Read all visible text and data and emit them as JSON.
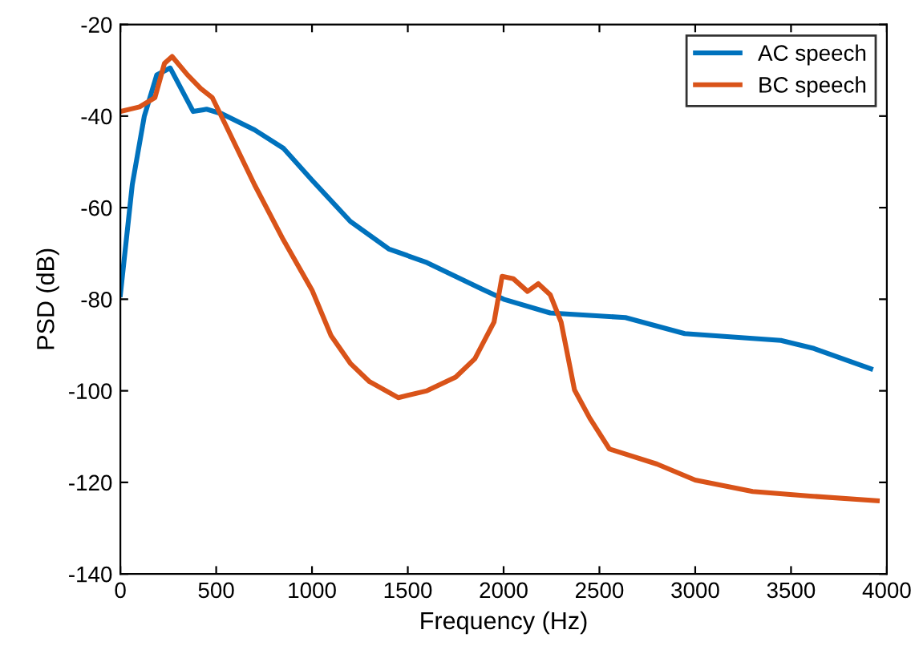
{
  "chart_data": {
    "type": "line",
    "xlabel": "Frequency (Hz)",
    "ylabel": "PSD (dB)",
    "xlim": [
      0,
      4000
    ],
    "ylim": [
      -140,
      -20
    ],
    "xticks": [
      0,
      500,
      1000,
      1500,
      2000,
      2500,
      3000,
      3500,
      4000
    ],
    "yticks": [
      -140,
      -120,
      -100,
      -80,
      -60,
      -40,
      -20
    ],
    "grid": false,
    "legend": "top right",
    "marker": "none",
    "line_style": "solid",
    "series": [
      {
        "name": "AC speech",
        "color": "#0072bd",
        "x": [
          0,
          62,
          125,
          190,
          260,
          380,
          450,
          530,
          700,
          850,
          1000,
          1200,
          1400,
          1600,
          1883,
          2000,
          2243,
          2636,
          2945,
          3447,
          3615,
          3916
        ],
        "values": [
          -79,
          -55,
          -40,
          -31,
          -29.5,
          -39,
          -38.5,
          -39.5,
          -43,
          -47,
          -54,
          -63,
          -69,
          -72,
          -77.7,
          -80,
          -83,
          -84,
          -87.5,
          -89,
          -90.7,
          -95.2
        ]
      },
      {
        "name": "BC speech",
        "color": "#d95319",
        "x": [
          0,
          100,
          180,
          200,
          230,
          270,
          350,
          420,
          480,
          550,
          700,
          850,
          1000,
          1100,
          1200,
          1300,
          1450,
          1600,
          1750,
          1850,
          1950,
          1992,
          2050,
          2125,
          2181,
          2243,
          2300,
          2370,
          2450,
          2552,
          2800,
          3000,
          3300,
          3600,
          3950
        ],
        "values": [
          -39,
          -38,
          -36,
          -33,
          -28.5,
          -27,
          -31,
          -34,
          -36,
          -42,
          -55,
          -67,
          -78,
          -88,
          -94,
          -98,
          -101.5,
          -100,
          -97,
          -93,
          -85,
          -75,
          -75.5,
          -78.3,
          -76.6,
          -79,
          -85,
          -99.8,
          -106,
          -112.7,
          -116,
          -119.5,
          -122,
          -123,
          -124
        ]
      }
    ]
  }
}
